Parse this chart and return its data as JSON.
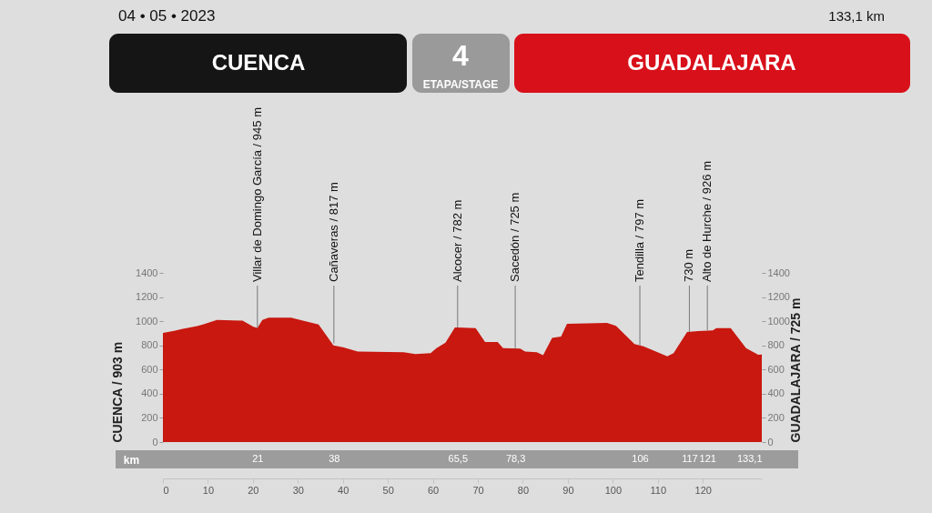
{
  "chart_data": {
    "type": "area",
    "annotations": [
      "04 • 05 • 2023",
      "133,1 km",
      "CUENCA",
      "4",
      "ETAPA/STAGE",
      "GUADALAJARA",
      {
        "text": "Villar de Domingo García / 945 m",
        "x": 21,
        "y": 945
      },
      {
        "text": "Cañaveras / 817 m",
        "x": 38,
        "y": 817
      },
      {
        "text": "Alcocer / 782 m",
        "x": 65.5,
        "y": 947
      },
      {
        "text": "Sacedón / 725 m",
        "x": 78.3,
        "y": 774
      },
      {
        "text": "Tendilla / 797 m",
        "x": 106,
        "y": 797
      },
      {
        "text": "730 m",
        "x": 117,
        "y": 912
      },
      {
        "text": "Alto de Hurche / 926 m",
        "x": 121,
        "y": 926
      }
    ],
    "ylabel": "CUENCA / 903 m",
    "y2label": "GUADALAJARA / 725 m",
    "x2label": "km",
    "series": [
      {
        "color": "#c8180f",
        "x": [
          0,
          2.5,
          4.2,
          7.6,
          8.9,
          12,
          17.7,
          20.1,
          21,
          22.1,
          23.5,
          28.5,
          30.5,
          34.6,
          37.9,
          40,
          43.3,
          53.5,
          56.1,
          59.5,
          60.8,
          62.8,
          64.9,
          69.5,
          71.6,
          74.4,
          75.6,
          79.4,
          80.5,
          83.1,
          84.5,
          86.5,
          88.5,
          89.8,
          98.7,
          100.7,
          104.8,
          106.8,
          112.1,
          113.5,
          116.5,
          118.9,
          122.2,
          123,
          126.2,
          129.6,
          132.3,
          133.1
        ],
        "values": [
          903,
          920,
          935,
          960,
          973,
          1010,
          1004,
          954,
          945,
          1010,
          1030,
          1030,
          1010,
          973,
          800,
          785,
          748,
          743,
          728,
          735,
          778,
          823,
          948,
          943,
          828,
          828,
          778,
          773,
          748,
          743,
          718,
          861,
          873,
          979,
          986,
          961,
          811,
          793,
          710,
          735,
          911,
          918,
          923,
          943,
          943,
          778,
          723,
          725
        ]
      }
    ],
    "xlim": [
      0,
      133.1
    ],
    "xticks": [
      0,
      10,
      20,
      30,
      40,
      50,
      60,
      70,
      80,
      90,
      100,
      110,
      120
    ],
    "x2lim": [
      0,
      133.1
    ],
    "x2ticks": [
      21,
      38,
      {
        "value": 65.5,
        "label": "65,5"
      },
      {
        "value": 78.3,
        "label": "78,3"
      },
      106,
      117,
      121,
      {
        "value": 133.1,
        "label": "133,1"
      }
    ],
    "ylim": [
      0,
      1400
    ],
    "yticks": [
      0,
      200,
      400,
      600,
      800,
      1000,
      1200,
      1400
    ],
    "y2lim": [
      0,
      1400
    ],
    "y2ticks": [
      0,
      200,
      400,
      600,
      800,
      1000,
      1200,
      1400
    ]
  }
}
